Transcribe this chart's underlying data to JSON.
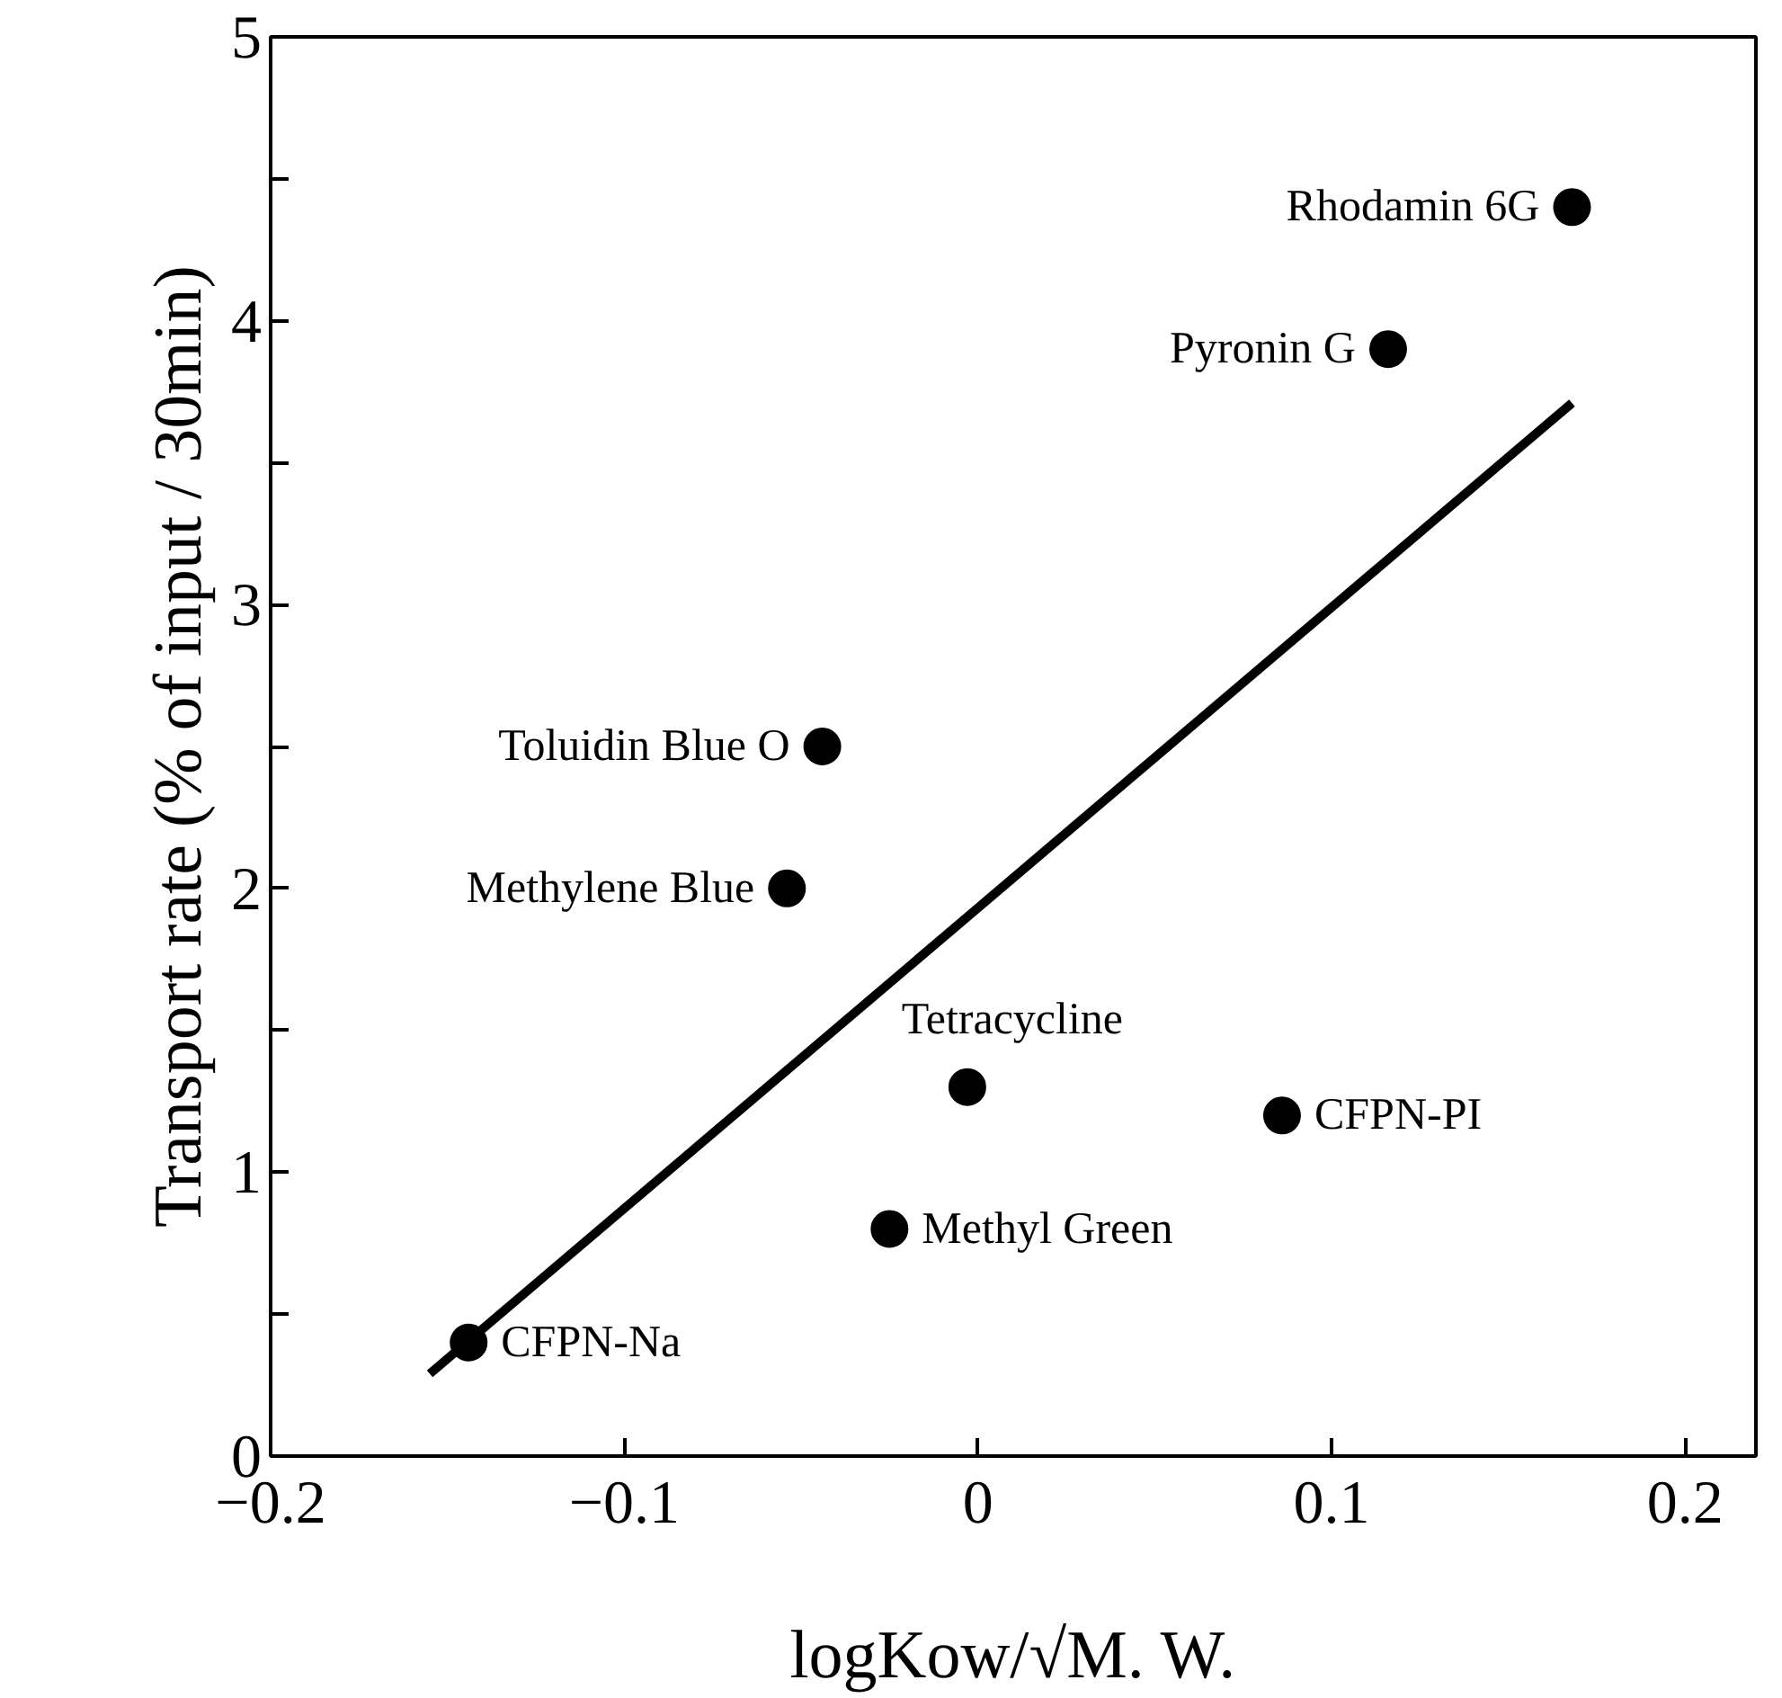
{
  "chart_data": {
    "type": "scatter",
    "xlabel": "logKow/√M. W.",
    "ylabel": "Transport rate (% of input / 30min)",
    "xlim": [
      -0.2,
      0.22
    ],
    "xticks": [
      -0.2,
      -0.1,
      {
        "value": 0,
        "label": "0"
      },
      0.1,
      0.2
    ],
    "ylim": [
      0,
      5
    ],
    "yticks": [
      0,
      {
        "value": 0.5,
        "label": null
      },
      1,
      {
        "value": 1.5,
        "label": null
      },
      2,
      {
        "value": 2.5,
        "label": null
      },
      3,
      {
        "value": 3.5,
        "label": null
      },
      4,
      {
        "value": 4.5,
        "label": null
      },
      5
    ],
    "grid": false,
    "marker": "circle",
    "series": [
      {
        "color": "#000000",
        "x": [
          0.168,
          0.116,
          -0.044,
          -0.054,
          -0.003,
          0.086,
          -0.025,
          -0.144
        ],
        "values": [
          4.4,
          3.9,
          2.5,
          2.0,
          1.3,
          1.2,
          0.8,
          0.4
        ]
      },
      {
        "type": "line",
        "color": "#000000",
        "marker": "none",
        "line_style": "solid",
        "x": [
          -0.155,
          0.168
        ],
        "values": [
          0.29,
          3.71
        ]
      }
    ],
    "annotations": [
      {
        "text": "Rhodamin 6G",
        "x": 0.168,
        "y": 4.4
      },
      {
        "text": "Pyronin G",
        "x": 0.116,
        "y": 3.9
      },
      {
        "text": "Toluidin Blue O",
        "x": -0.044,
        "y": 2.5
      },
      {
        "text": "Methylene Blue",
        "x": -0.054,
        "y": 2.0
      },
      {
        "text": "Tetracycline",
        "x": -0.003,
        "y": 1.3
      },
      {
        "text": "CFPN-PI",
        "x": 0.086,
        "y": 1.2
      },
      {
        "text": "Methyl Green",
        "x": -0.025,
        "y": 0.8
      },
      {
        "text": "CFPN-Na",
        "x": -0.144,
        "y": 0.4
      }
    ]
  }
}
